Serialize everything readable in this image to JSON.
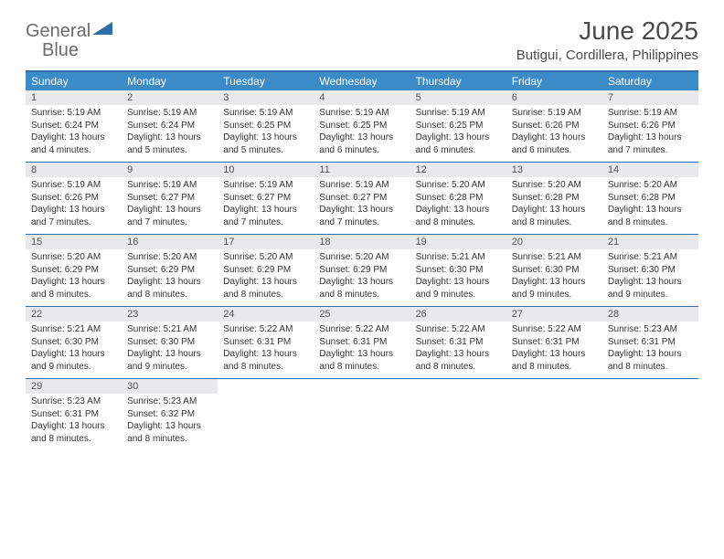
{
  "logo": {
    "word1": "General",
    "word2": "Blue",
    "triangle_color": "#2f6fa8"
  },
  "title": "June 2025",
  "location": "Butigui, Cordillera, Philippines",
  "header_bg": "#3b8bc9",
  "border_color": "#2f6fa8",
  "daynum_bg": "#e8e9ea",
  "weekdays": [
    "Sunday",
    "Monday",
    "Tuesday",
    "Wednesday",
    "Thursday",
    "Friday",
    "Saturday"
  ],
  "weeks": [
    [
      {
        "n": "1",
        "sr": "5:19 AM",
        "ss": "6:24 PM",
        "dl": "13 hours and 4 minutes."
      },
      {
        "n": "2",
        "sr": "5:19 AM",
        "ss": "6:24 PM",
        "dl": "13 hours and 5 minutes."
      },
      {
        "n": "3",
        "sr": "5:19 AM",
        "ss": "6:25 PM",
        "dl": "13 hours and 5 minutes."
      },
      {
        "n": "4",
        "sr": "5:19 AM",
        "ss": "6:25 PM",
        "dl": "13 hours and 6 minutes."
      },
      {
        "n": "5",
        "sr": "5:19 AM",
        "ss": "6:25 PM",
        "dl": "13 hours and 6 minutes."
      },
      {
        "n": "6",
        "sr": "5:19 AM",
        "ss": "6:26 PM",
        "dl": "13 hours and 6 minutes."
      },
      {
        "n": "7",
        "sr": "5:19 AM",
        "ss": "6:26 PM",
        "dl": "13 hours and 7 minutes."
      }
    ],
    [
      {
        "n": "8",
        "sr": "5:19 AM",
        "ss": "6:26 PM",
        "dl": "13 hours and 7 minutes."
      },
      {
        "n": "9",
        "sr": "5:19 AM",
        "ss": "6:27 PM",
        "dl": "13 hours and 7 minutes."
      },
      {
        "n": "10",
        "sr": "5:19 AM",
        "ss": "6:27 PM",
        "dl": "13 hours and 7 minutes."
      },
      {
        "n": "11",
        "sr": "5:19 AM",
        "ss": "6:27 PM",
        "dl": "13 hours and 7 minutes."
      },
      {
        "n": "12",
        "sr": "5:20 AM",
        "ss": "6:28 PM",
        "dl": "13 hours and 8 minutes."
      },
      {
        "n": "13",
        "sr": "5:20 AM",
        "ss": "6:28 PM",
        "dl": "13 hours and 8 minutes."
      },
      {
        "n": "14",
        "sr": "5:20 AM",
        "ss": "6:28 PM",
        "dl": "13 hours and 8 minutes."
      }
    ],
    [
      {
        "n": "15",
        "sr": "5:20 AM",
        "ss": "6:29 PM",
        "dl": "13 hours and 8 minutes."
      },
      {
        "n": "16",
        "sr": "5:20 AM",
        "ss": "6:29 PM",
        "dl": "13 hours and 8 minutes."
      },
      {
        "n": "17",
        "sr": "5:20 AM",
        "ss": "6:29 PM",
        "dl": "13 hours and 8 minutes."
      },
      {
        "n": "18",
        "sr": "5:20 AM",
        "ss": "6:29 PM",
        "dl": "13 hours and 8 minutes."
      },
      {
        "n": "19",
        "sr": "5:21 AM",
        "ss": "6:30 PM",
        "dl": "13 hours and 9 minutes."
      },
      {
        "n": "20",
        "sr": "5:21 AM",
        "ss": "6:30 PM",
        "dl": "13 hours and 9 minutes."
      },
      {
        "n": "21",
        "sr": "5:21 AM",
        "ss": "6:30 PM",
        "dl": "13 hours and 9 minutes."
      }
    ],
    [
      {
        "n": "22",
        "sr": "5:21 AM",
        "ss": "6:30 PM",
        "dl": "13 hours and 9 minutes."
      },
      {
        "n": "23",
        "sr": "5:21 AM",
        "ss": "6:30 PM",
        "dl": "13 hours and 9 minutes."
      },
      {
        "n": "24",
        "sr": "5:22 AM",
        "ss": "6:31 PM",
        "dl": "13 hours and 8 minutes."
      },
      {
        "n": "25",
        "sr": "5:22 AM",
        "ss": "6:31 PM",
        "dl": "13 hours and 8 minutes."
      },
      {
        "n": "26",
        "sr": "5:22 AM",
        "ss": "6:31 PM",
        "dl": "13 hours and 8 minutes."
      },
      {
        "n": "27",
        "sr": "5:22 AM",
        "ss": "6:31 PM",
        "dl": "13 hours and 8 minutes."
      },
      {
        "n": "28",
        "sr": "5:23 AM",
        "ss": "6:31 PM",
        "dl": "13 hours and 8 minutes."
      }
    ],
    [
      {
        "n": "29",
        "sr": "5:23 AM",
        "ss": "6:31 PM",
        "dl": "13 hours and 8 minutes."
      },
      {
        "n": "30",
        "sr": "5:23 AM",
        "ss": "6:32 PM",
        "dl": "13 hours and 8 minutes."
      },
      null,
      null,
      null,
      null,
      null
    ]
  ],
  "labels": {
    "sunrise": "Sunrise: ",
    "sunset": "Sunset: ",
    "daylight": "Daylight: "
  }
}
